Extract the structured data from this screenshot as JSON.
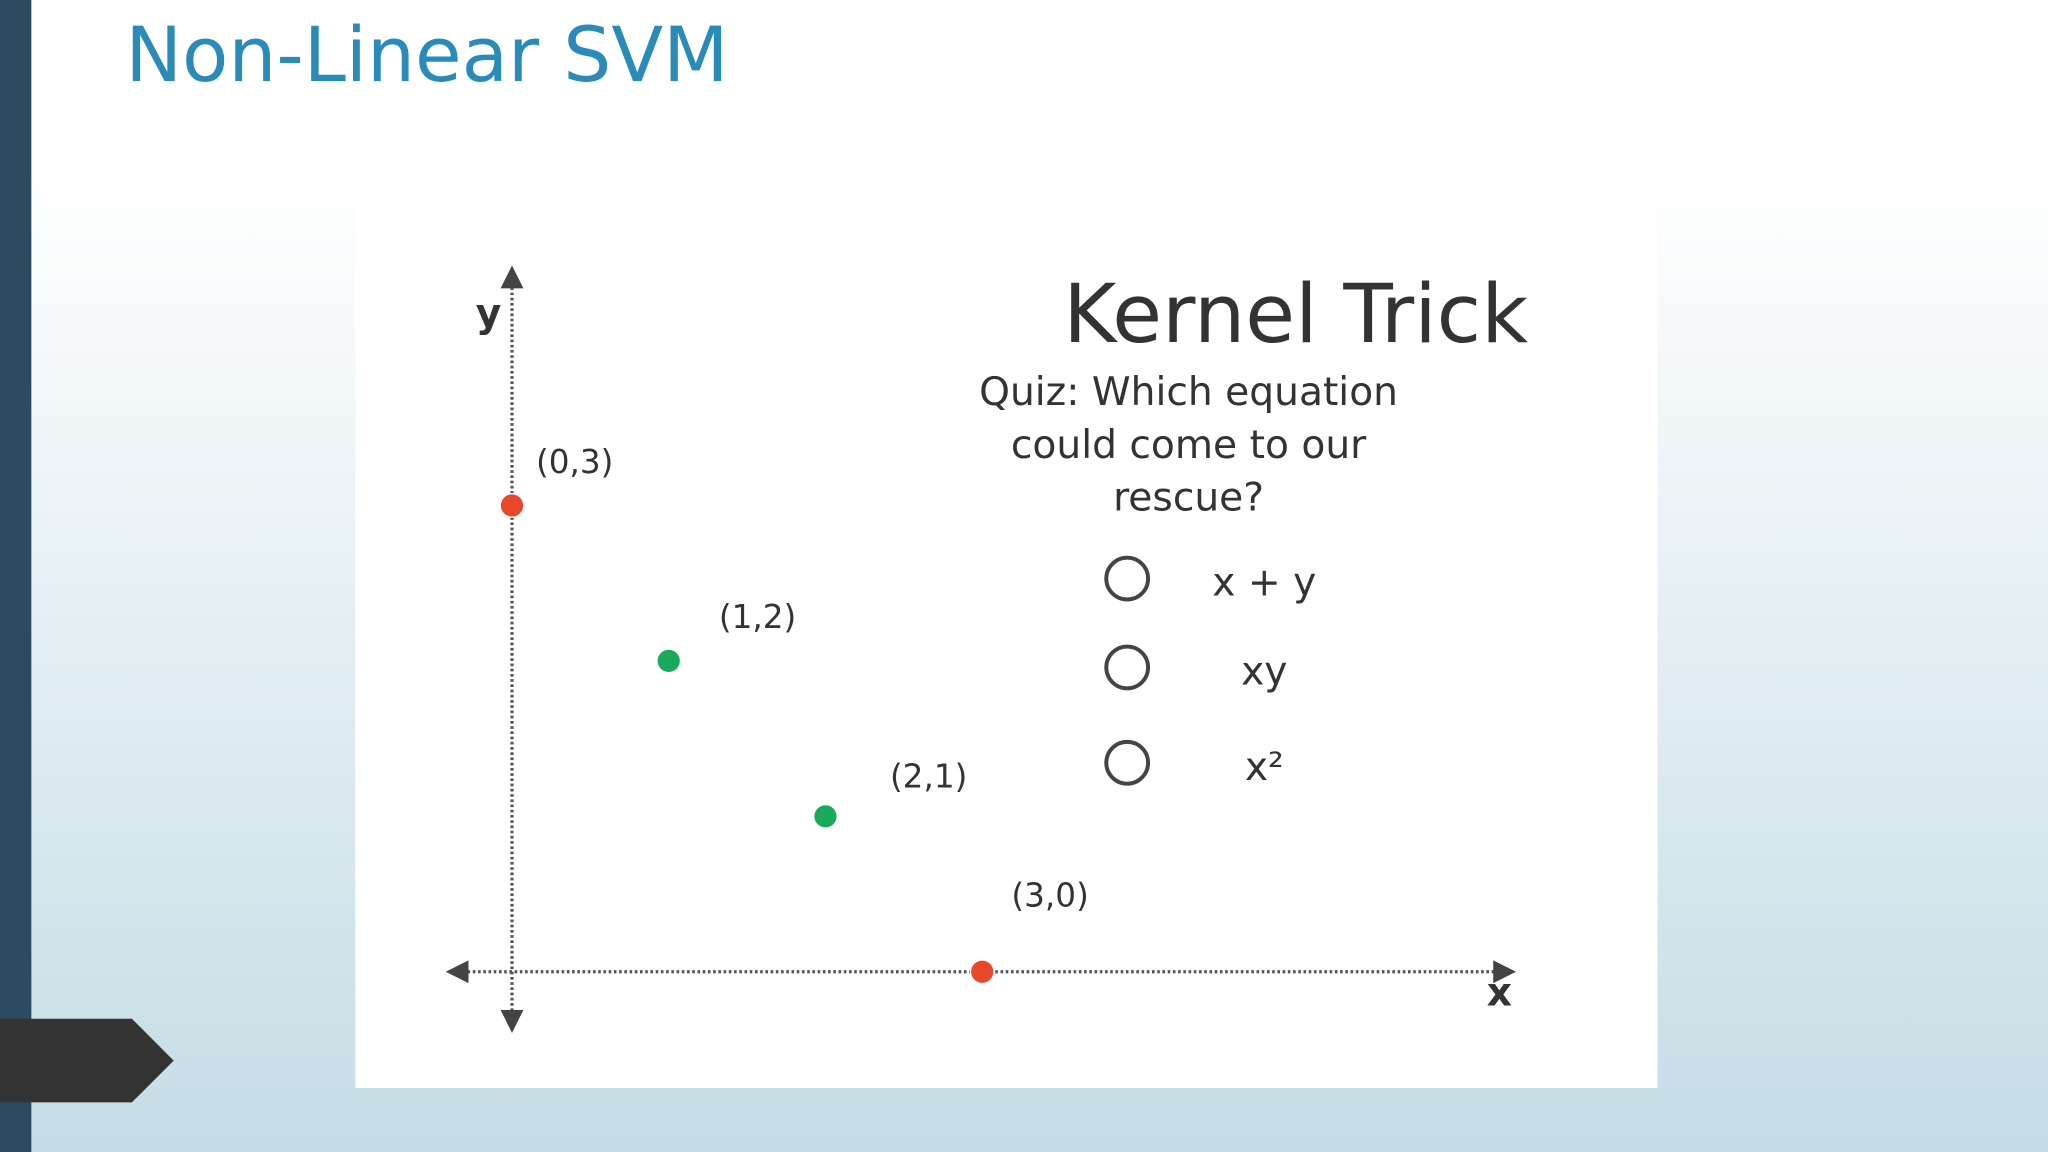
{
  "title": "Non-Linear SVM",
  "figure": {
    "title": "Kernel Trick",
    "quiz": [
      "Quiz: Which equation",
      "could come to our",
      "rescue?"
    ],
    "options": [
      "x + y",
      "xy",
      "x²"
    ],
    "x_axis_label": "x",
    "y_axis_label": "y",
    "points": [
      {
        "label": "(0,3)",
        "x": 0,
        "y": 3,
        "color": "#e8472a"
      },
      {
        "label": "(1,2)",
        "x": 1,
        "y": 2,
        "color": "#1aa85a"
      },
      {
        "label": "(2,1)",
        "x": 2,
        "y": 1,
        "color": "#1aa85a"
      },
      {
        "label": "(3,0)",
        "x": 3,
        "y": 0,
        "color": "#e8472a"
      }
    ]
  }
}
